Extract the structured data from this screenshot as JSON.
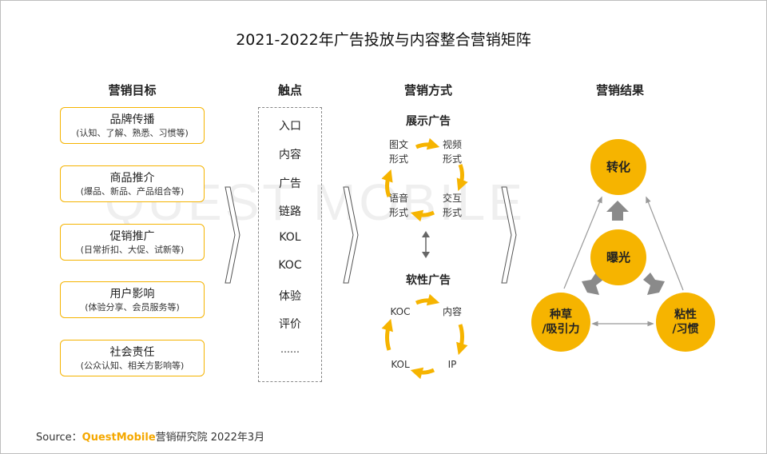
{
  "title": "2021-2022年广告投放与内容整合营销矩阵",
  "watermark": "QUEST MOBILE",
  "columns": {
    "goals": "营销目标",
    "touchpoints": "触点",
    "methods": "营销方式",
    "results": "营销结果"
  },
  "goals": [
    {
      "name": "品牌传播",
      "detail": "(认知、了解、熟悉、习惯等)"
    },
    {
      "name": "商品推介",
      "detail": "(爆品、新品、产品组合等)"
    },
    {
      "name": "促销推广",
      "detail": "(日常折扣、大促、试新等)"
    },
    {
      "name": "用户影响",
      "detail": "(体验分享、会员服务等)"
    },
    {
      "name": "社会责任",
      "detail": "(公众认知、相关方影响等)"
    }
  ],
  "touchpoints": [
    "入口",
    "内容",
    "广告",
    "链路",
    "KOL",
    "KOC",
    "体验",
    "评价",
    "……"
  ],
  "methods": {
    "display": {
      "title": "展示广告",
      "items": {
        "top_left": [
          "图文",
          "形式"
        ],
        "top_right": [
          "视频",
          "形式"
        ],
        "bottom_left": [
          "语音",
          "形式"
        ],
        "bottom_right": [
          "交互",
          "形式"
        ]
      }
    },
    "native": {
      "title": "软性广告",
      "items": {
        "top_left": "KOC",
        "top_right": "内容",
        "bottom_left": "KOL",
        "bottom_right": "IP"
      }
    }
  },
  "results": {
    "top": "转化",
    "center": "曝光",
    "left": [
      "种草",
      "/吸引力"
    ],
    "right": [
      "粘性",
      "/习惯"
    ]
  },
  "source": {
    "prefix": "Source：",
    "brand": "QuestMobile",
    "suffix": "营销研究院 2022年3月"
  },
  "colors": {
    "accent": "#f6b400",
    "border_gold": "#f5b300",
    "arrow_gray": "#8a8a8a"
  }
}
